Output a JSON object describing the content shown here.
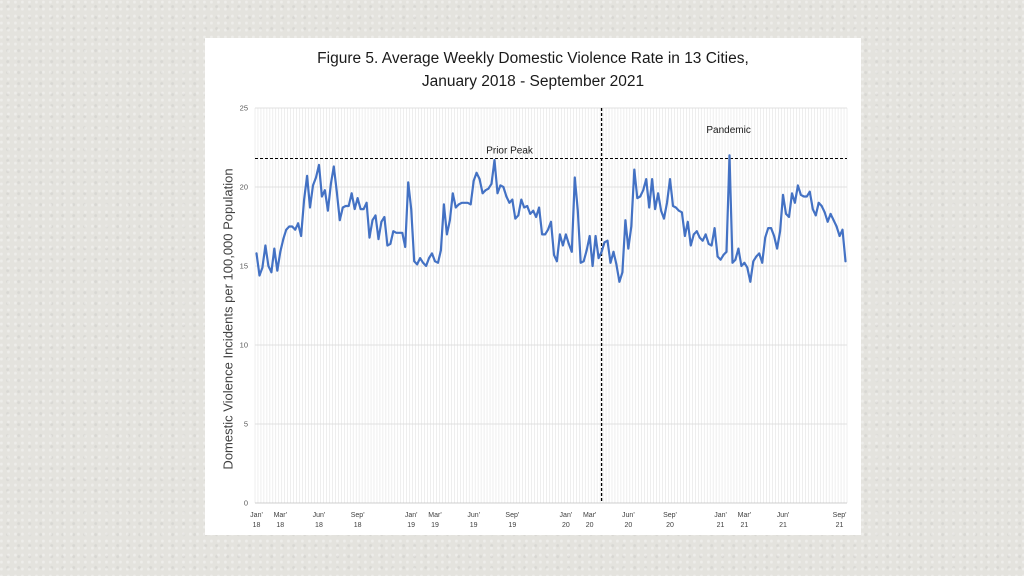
{
  "chart_data": {
    "type": "line",
    "title_line1": "Figure 5. Average Weekly Domestic Violence Rate in 13 Cities,",
    "title_line2": "January 2018 - September 2021",
    "ylabel": "Domestic Violence Incidents per 100,000 Population",
    "xlabel": "",
    "ylim": [
      0,
      25
    ],
    "yticks": [
      0,
      5,
      10,
      15,
      20,
      25
    ],
    "grid": true,
    "legend": "none",
    "line_color": "#4472c4",
    "x_ticks": [
      {
        "week": 0,
        "m": "Jan",
        "y": "18"
      },
      {
        "week": 8,
        "m": "Mar",
        "y": "18"
      },
      {
        "week": 21,
        "m": "Jun",
        "y": "18"
      },
      {
        "week": 34,
        "m": "Sep",
        "y": "18"
      },
      {
        "week": 52,
        "m": "Jan",
        "y": "19"
      },
      {
        "week": 60,
        "m": "Mar",
        "y": "19"
      },
      {
        "week": 73,
        "m": "Jun",
        "y": "19"
      },
      {
        "week": 86,
        "m": "Sep",
        "y": "19"
      },
      {
        "week": 104,
        "m": "Jan",
        "y": "20"
      },
      {
        "week": 112,
        "m": "Mar",
        "y": "20"
      },
      {
        "week": 125,
        "m": "Jun",
        "y": "20"
      },
      {
        "week": 139,
        "m": "Sep",
        "y": "20"
      },
      {
        "week": 156,
        "m": "Jan",
        "y": "21"
      },
      {
        "week": 164,
        "m": "Mar",
        "y": "21"
      },
      {
        "week": 177,
        "m": "Jun",
        "y": "21"
      },
      {
        "week": 196,
        "m": "Sep",
        "y": "21"
      }
    ],
    "annotations": [
      {
        "text": "Prior Peak",
        "kind": "horizontal_line",
        "value": 21.8
      },
      {
        "text": "Pandemic",
        "kind": "vertical_line",
        "week": 116
      }
    ],
    "series": [
      {
        "values": [
          15.8,
          14.4,
          14.9,
          16.3,
          15.0,
          14.6,
          16.1,
          14.7,
          15.9,
          16.7,
          17.3,
          17.5,
          17.5,
          17.3,
          17.7,
          16.9,
          19.2,
          20.7,
          18.7,
          20.1,
          20.6,
          21.4,
          19.4,
          19.8,
          18.5,
          20.2,
          21.3,
          19.7,
          17.9,
          18.7,
          18.8,
          18.8,
          19.6,
          18.6,
          19.3,
          18.6,
          18.6,
          19.0,
          16.8,
          17.9,
          18.2,
          16.7,
          17.8,
          18.1,
          16.3,
          16.4,
          17.2,
          17.1,
          17.1,
          17.1,
          16.2,
          20.3,
          18.6,
          15.3,
          15.1,
          15.5,
          15.2,
          15.0,
          15.5,
          15.8,
          15.3,
          15.2,
          16.0,
          18.9,
          17.0,
          17.9,
          19.6,
          18.7,
          18.9,
          19.0,
          19.0,
          19.0,
          18.9,
          20.4,
          20.9,
          20.5,
          19.6,
          19.8,
          19.9,
          20.2,
          21.7,
          19.6,
          20.1,
          20.0,
          19.4,
          19.0,
          19.2,
          18.0,
          18.2,
          19.2,
          18.7,
          18.8,
          18.3,
          18.5,
          18.1,
          18.7,
          17.0,
          17.0,
          17.3,
          17.8,
          15.7,
          15.3,
          17.0,
          16.3,
          17.0,
          16.4,
          15.9,
          20.6,
          18.5,
          15.2,
          15.3,
          16.0,
          16.9,
          15.0,
          16.9,
          15.5,
          15.9,
          16.5,
          16.6,
          15.2,
          15.9,
          15.1,
          14.0,
          14.6,
          17.9,
          16.1,
          17.5,
          21.1,
          19.3,
          19.4,
          19.8,
          20.5,
          18.7,
          20.5,
          18.6,
          19.6,
          18.5,
          18.0,
          19.0,
          20.5,
          18.8,
          18.7,
          18.5,
          18.4,
          16.9,
          17.8,
          16.3,
          17.0,
          17.2,
          16.8,
          16.6,
          17.0,
          16.4,
          16.3,
          17.4,
          15.6,
          15.4,
          15.7,
          15.9,
          22.0,
          15.2,
          15.4,
          16.1,
          15.0,
          15.2,
          14.9,
          14.0,
          15.3,
          15.6,
          15.8,
          15.2,
          16.8,
          17.4,
          17.4,
          16.9,
          16.1,
          17.2,
          19.5,
          18.3,
          18.1,
          19.6,
          19.0,
          20.1,
          19.5,
          19.4,
          19.4,
          19.7,
          18.6,
          18.2,
          19.0,
          18.8,
          18.4,
          17.8,
          18.3,
          17.9,
          17.5,
          16.9,
          17.3,
          15.3
        ]
      }
    ]
  }
}
